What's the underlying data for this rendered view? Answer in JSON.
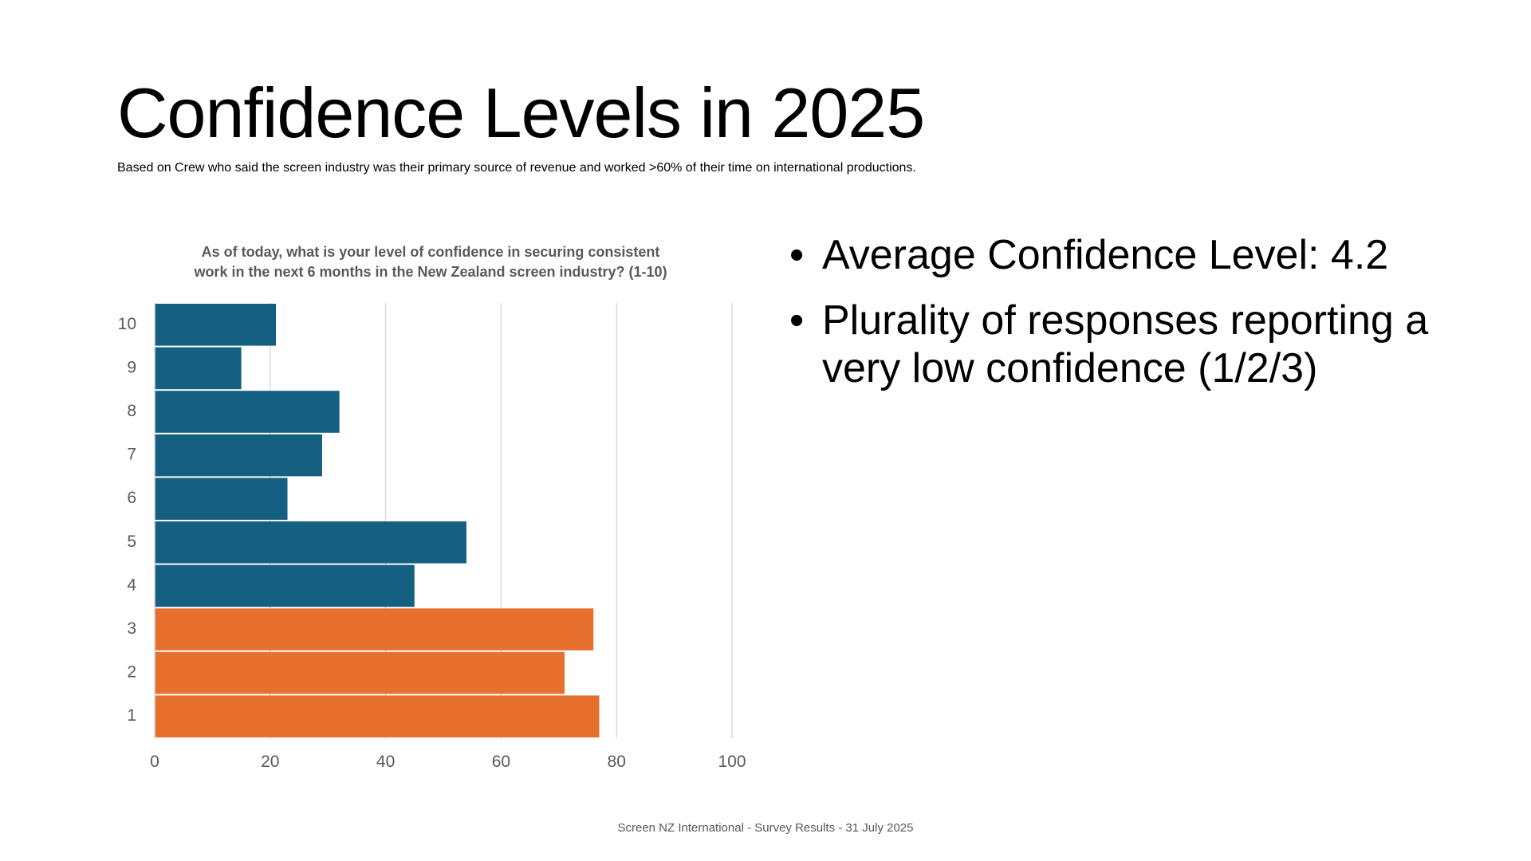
{
  "slide": {
    "title": "Confidence Levels in 2025",
    "subtitle": "Based on Crew who said the screen industry was their primary source of revenue and worked >60% of their time on international productions.",
    "bullets": [
      "Average Confidence Level: 4.2",
      "Plurality of responses reporting a very low confidence (1/2/3)"
    ],
    "bullet_symbol": "•",
    "footer": "Screen NZ International - Survey Results - 31 July 2025"
  },
  "chart_data": {
    "type": "bar",
    "orientation": "horizontal",
    "title_lines": [
      "As of today, what is your level of confidence in securing consistent",
      "work in the next 6 months in the New Zealand screen industry? (1-10)"
    ],
    "categories": [
      "1",
      "2",
      "3",
      "4",
      "5",
      "6",
      "7",
      "8",
      "9",
      "10"
    ],
    "values": [
      77,
      71,
      76,
      45,
      54,
      23,
      29,
      32,
      15,
      21
    ],
    "colors": [
      "#E8702E",
      "#E8702E",
      "#E8702E",
      "#156082",
      "#156082",
      "#156082",
      "#156082",
      "#156082",
      "#156082",
      "#156082"
    ],
    "xlim": [
      0,
      100
    ],
    "xticks": [
      "0",
      "20",
      "40",
      "60",
      "80",
      "100"
    ],
    "grid": true,
    "xlabel": "",
    "ylabel": ""
  }
}
